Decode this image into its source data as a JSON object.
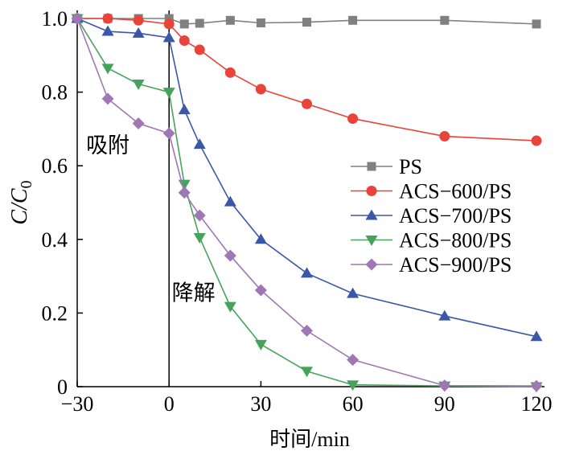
{
  "chart_data": {
    "type": "line",
    "xlabel": "时间/min",
    "ylabel_main": "C/C",
    "ylabel_sub": "0",
    "xlim": [
      -30,
      120
    ],
    "ylim": [
      0,
      1.0
    ],
    "xticks": [
      "-30",
      "0",
      "30",
      "60",
      "90",
      "120"
    ],
    "xtick_values": [
      -30,
      0,
      30,
      60,
      90,
      120
    ],
    "yticks": [
      "0",
      "0.2",
      "0.4",
      "0.6",
      "0.8",
      "1.0"
    ],
    "ytick_values": [
      0,
      0.2,
      0.4,
      0.6,
      0.8,
      1.0
    ],
    "grid": false,
    "legend_position": "right-middle",
    "annotations": [
      {
        "text": "吸附",
        "x": -20,
        "y": 0.635
      },
      {
        "text": "降解",
        "x": 8,
        "y": 0.235
      }
    ],
    "vline_x": 0,
    "series": [
      {
        "name": "PS",
        "marker": "square",
        "color": "#808080",
        "x": [
          -30,
          -20,
          -10,
          0,
          5,
          10,
          20,
          30,
          45,
          60,
          90,
          120
        ],
        "y": [
          1.0,
          1.0,
          1.0,
          1.0,
          0.985,
          0.987,
          0.995,
          0.988,
          0.99,
          0.995,
          0.995,
          0.985
        ]
      },
      {
        "name": "ACS−600/PS",
        "marker": "circle",
        "color": "#e8443a",
        "x": [
          -30,
          -20,
          -10,
          0,
          5,
          10,
          20,
          30,
          45,
          60,
          90,
          120
        ],
        "y": [
          1.0,
          1.0,
          0.995,
          0.985,
          0.94,
          0.915,
          0.853,
          0.808,
          0.768,
          0.728,
          0.68,
          0.668
        ]
      },
      {
        "name": "ACS−700/PS",
        "marker": "triangle-up",
        "color": "#3b57a8",
        "x": [
          -30,
          -20,
          -10,
          0,
          5,
          10,
          20,
          30,
          45,
          60,
          90,
          120
        ],
        "y": [
          1.0,
          0.965,
          0.96,
          0.948,
          0.752,
          0.658,
          0.502,
          0.4,
          0.308,
          0.253,
          0.192,
          0.136
        ]
      },
      {
        "name": "ACS−800/PS",
        "marker": "triangle-down",
        "color": "#47a35c",
        "x": [
          -30,
          -20,
          -10,
          0,
          5,
          10,
          20,
          30,
          45,
          60,
          90,
          120
        ],
        "y": [
          1.0,
          0.865,
          0.822,
          0.8,
          0.55,
          0.405,
          0.218,
          0.115,
          0.042,
          0.005,
          0.002,
          0.0
        ]
      },
      {
        "name": "ACS−900/PS",
        "marker": "diamond",
        "color": "#a077b5",
        "x": [
          -30,
          -20,
          -10,
          0,
          5,
          10,
          20,
          30,
          45,
          60,
          90,
          120
        ],
        "y": [
          1.0,
          0.782,
          0.715,
          0.688,
          0.527,
          0.465,
          0.356,
          0.262,
          0.152,
          0.073,
          0.003,
          0.002
        ]
      }
    ]
  }
}
